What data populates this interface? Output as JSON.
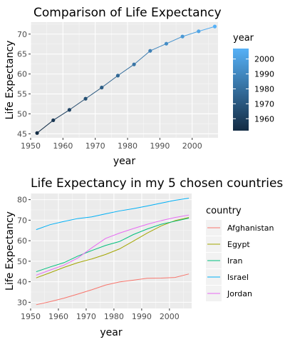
{
  "chart_data": [
    {
      "type": "line",
      "title": "Comparison of Life Expectancy",
      "xlabel": "year",
      "ylabel": "Life Expectancy",
      "xlim": [
        1950,
        2008
      ],
      "ylim": [
        44,
        73
      ],
      "xticks": [
        1950,
        1960,
        1970,
        1980,
        1990,
        2000
      ],
      "yticks": [
        45,
        50,
        55,
        60,
        65,
        70
      ],
      "grid": true,
      "points": true,
      "x": [
        1952,
        1957,
        1962,
        1967,
        1972,
        1977,
        1982,
        1987,
        1992,
        1997,
        2002,
        2007
      ],
      "y": [
        45.2,
        48.4,
        51.0,
        53.8,
        56.6,
        59.6,
        62.4,
        65.8,
        67.6,
        69.4,
        70.7,
        71.9
      ],
      "color_scale": {
        "title": "year",
        "low_color": "#132B43",
        "high_color": "#56B1F7",
        "range": [
          1952,
          2007
        ],
        "ticks": [
          1960,
          1970,
          1980,
          1990,
          2000
        ]
      },
      "legend_position": "right"
    },
    {
      "type": "line",
      "title": "Life Expectancy in my 5 chosen countries",
      "xlabel": "year",
      "ylabel": "Life Expectancy",
      "xlim": [
        1950,
        2008
      ],
      "ylim": [
        27,
        83
      ],
      "xticks": [
        1950,
        1960,
        1970,
        1980,
        1990,
        2000
      ],
      "yticks": [
        30,
        40,
        50,
        60,
        70,
        80
      ],
      "grid": true,
      "legend_title": "country",
      "legend_position": "right",
      "x": [
        1952,
        1957,
        1962,
        1967,
        1972,
        1977,
        1982,
        1987,
        1992,
        1997,
        2002,
        2007
      ],
      "series": [
        {
          "name": "Afghanistan",
          "color": "#F8766D",
          "values": [
            28.8,
            30.3,
            32.0,
            34.0,
            36.1,
            38.4,
            39.9,
            40.8,
            41.7,
            41.8,
            42.1,
            43.8
          ]
        },
        {
          "name": "Egypt",
          "color": "#A3A500",
          "values": [
            41.9,
            44.4,
            46.99,
            49.3,
            51.1,
            53.3,
            56.0,
            59.8,
            63.7,
            67.2,
            69.8,
            71.3
          ]
        },
        {
          "name": "Iran",
          "color": "#00BF7D",
          "values": [
            44.9,
            47.2,
            49.3,
            52.5,
            55.2,
            57.7,
            59.6,
            63.0,
            65.7,
            68.0,
            69.5,
            71.0
          ]
        },
        {
          "name": "Israel",
          "color": "#00B0F6",
          "values": [
            65.4,
            67.8,
            69.4,
            70.8,
            71.6,
            73.1,
            74.5,
            75.6,
            76.9,
            78.3,
            79.7,
            80.7
          ]
        },
        {
          "name": "Jordan",
          "color": "#E76BF3",
          "values": [
            43.2,
            45.7,
            48.1,
            51.6,
            56.5,
            61.1,
            63.7,
            65.9,
            68.0,
            69.8,
            71.3,
            72.5
          ]
        }
      ]
    }
  ]
}
